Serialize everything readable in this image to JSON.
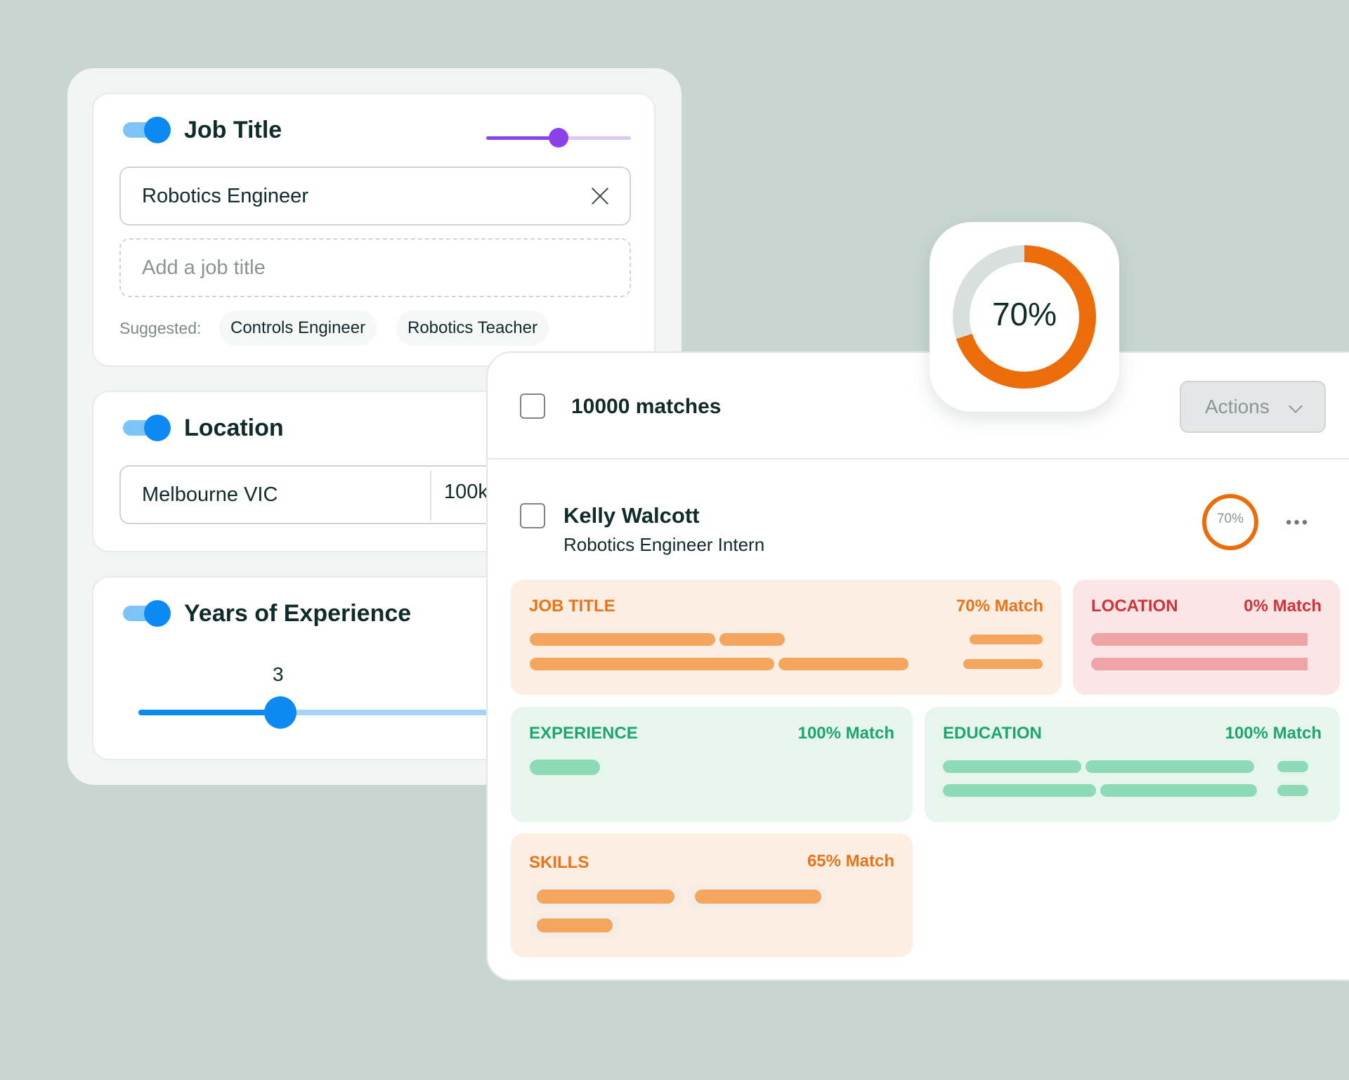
{
  "filters": {
    "job_title": {
      "label": "Job Title",
      "enabled": true,
      "weight_slider_fraction": 0.5,
      "value": "Robotics Engineer",
      "add_placeholder": "Add a job title",
      "suggested_label": "Suggested:",
      "suggestions": [
        "Controls Engineer",
        "Robotics Teacher"
      ]
    },
    "location": {
      "label": "Location",
      "enabled": true,
      "value": "Melbourne VIC",
      "radius": "100k"
    },
    "experience": {
      "label": "Years of Experience",
      "enabled": true,
      "value": "3"
    }
  },
  "results": {
    "matches_label": "10000 matches",
    "actions_label": "Actions",
    "overall_score": "70%",
    "overall_score_fraction": 0.7,
    "candidate": {
      "name": "Kelly Walcott",
      "title": "Robotics Engineer Intern",
      "score": "70%",
      "score_fraction": 0.7
    },
    "breakdown": {
      "job_title": {
        "label": "JOB TITLE",
        "match": "70% Match"
      },
      "location": {
        "label": "LOCATION",
        "match": "0% Match"
      },
      "experience": {
        "label": "EXPERIENCE",
        "match": "100% Match"
      },
      "education": {
        "label": "EDUCATION",
        "match": "100% Match"
      },
      "skills": {
        "label": "SKILLS",
        "match": "65% Match"
      }
    }
  },
  "colors": {
    "background": "#c7d6d0",
    "toggle_blue": "#0b8af2",
    "weight_purple": "#8c40ea",
    "score_orange": "#ec6c0a",
    "match_orange": "#e8741a",
    "match_red": "#d2313a",
    "match_green": "#1da66c"
  },
  "icons": {
    "clear": "close-icon",
    "dropdown": "chevron-down-icon",
    "more": "more-horizontal-icon"
  }
}
